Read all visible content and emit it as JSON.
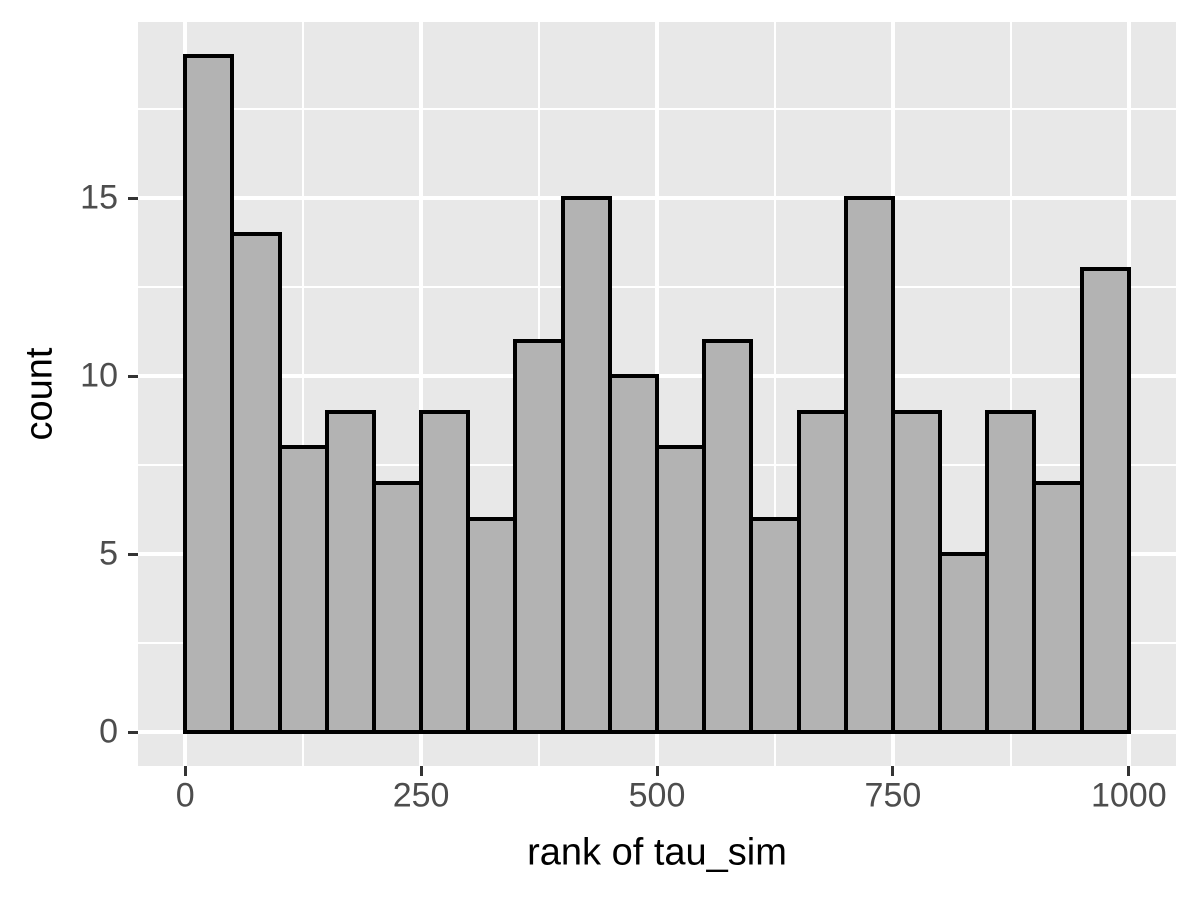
{
  "chart_data": {
    "type": "bar",
    "subtype": "histogram",
    "title": "",
    "xlabel": "rank of tau_sim",
    "ylabel": "count",
    "bin_width": 50,
    "bin_edges": [
      0,
      50,
      100,
      150,
      200,
      250,
      300,
      350,
      400,
      450,
      500,
      550,
      600,
      650,
      700,
      750,
      800,
      850,
      900,
      950,
      1000
    ],
    "values": [
      19,
      14,
      8,
      9,
      7,
      9,
      6,
      11,
      15,
      10,
      8,
      11,
      6,
      9,
      15,
      9,
      5,
      9,
      7,
      13
    ],
    "x_ticks": [
      0,
      250,
      500,
      750,
      1000
    ],
    "y_ticks": [
      0,
      5,
      10,
      15
    ],
    "x_minor_ticks": [
      125,
      375,
      625,
      875
    ],
    "y_minor_ticks": [
      2.5,
      7.5,
      12.5,
      17.5
    ],
    "xlim": [
      -50,
      1050
    ],
    "ylim": [
      -0.95,
      19.95
    ],
    "grid": "major-and-minor",
    "legend": "none",
    "colors": {
      "background": "#ffffff",
      "panel_bg": "#e8e8e8",
      "grid_major": "#ffffff",
      "grid_minor": "#ffffff",
      "bar_fill": "#b3b3b3",
      "bar_stroke": "#000000",
      "tick_mark": "#333333",
      "tick_label": "#4d4d4d",
      "axis_title": "#000000"
    }
  }
}
